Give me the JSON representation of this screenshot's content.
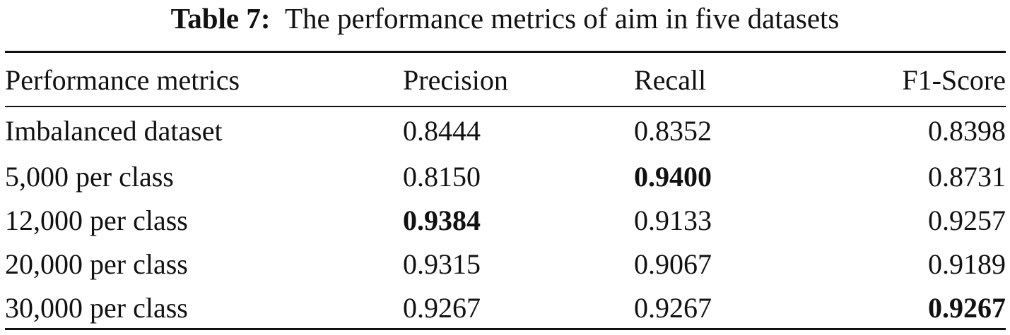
{
  "caption": {
    "label": "Table 7:",
    "text": "The performance metrics of aim in five datasets"
  },
  "table": {
    "headers": [
      "Performance metrics",
      "Precision",
      "Recall",
      "F1-Score"
    ],
    "rows": [
      {
        "name": "Imbalanced dataset",
        "values": [
          "0.8444",
          "0.8352",
          "0.8398"
        ],
        "bold": [
          false,
          false,
          false
        ]
      },
      {
        "name": "5,000 per class",
        "values": [
          "0.8150",
          "0.9400",
          "0.8731"
        ],
        "bold": [
          false,
          true,
          false
        ]
      },
      {
        "name": "12,000 per class",
        "values": [
          "0.9384",
          "0.9133",
          "0.9257"
        ],
        "bold": [
          true,
          false,
          false
        ]
      },
      {
        "name": "20,000 per class",
        "values": [
          "0.9315",
          "0.9067",
          "0.9189"
        ],
        "bold": [
          false,
          false,
          false
        ]
      },
      {
        "name": "30,000 per class",
        "values": [
          "0.9267",
          "0.9267",
          "0.9267"
        ],
        "bold": [
          false,
          false,
          true
        ]
      }
    ]
  }
}
